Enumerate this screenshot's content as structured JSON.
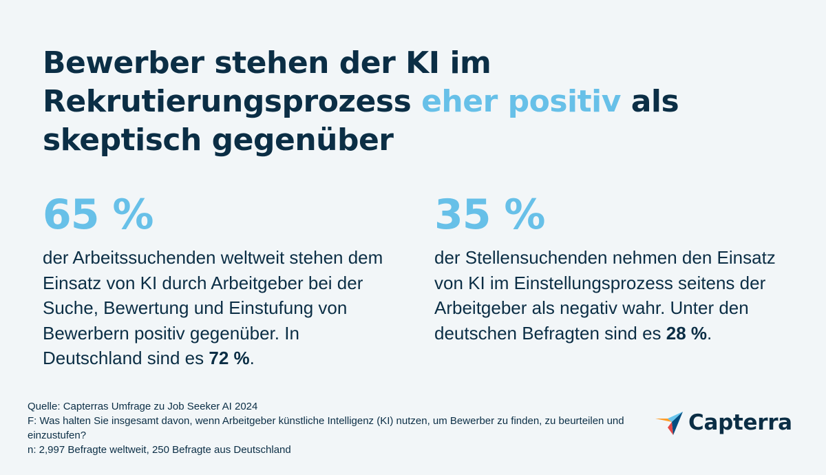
{
  "headline": {
    "part1": "Bewerber stehen der KI im Rekrutierungsprozess ",
    "accent": "eher positiv",
    "part2": " als skeptisch gegenüber"
  },
  "stats": [
    {
      "percent": "65 %",
      "text_before": "der Arbeitssuchenden weltweit stehen dem Einsatz von KI durch Arbeitgeber bei der Suche, Bewertung und Einstufung von Bewerbern positiv gegenüber. In Deutschland sind es ",
      "highlight": "72 %",
      "text_after": "."
    },
    {
      "percent": "35 %",
      "text_before": "der Stellensuchenden nehmen den Einsatz von KI im Einstellungsprozess seitens der Arbeitgeber als negativ wahr. Unter den deutschen Befragten sind es ",
      "highlight": "28 %",
      "text_after": "."
    }
  ],
  "footer": {
    "source": "Quelle: Capterras Umfrage zu Job Seeker AI 2024",
    "question": "F: Was halten Sie insgesamt davon, wenn Arbeitgeber künstliche Intelligenz (KI) nutzen, um Bewerber zu finden, zu beurteilen und einzustufen?",
    "sample": "n: 2,997 Befragte weltweit, 250 Befragte aus Deutschland"
  },
  "logo": {
    "name": "Capterra"
  },
  "colors": {
    "navy": "#0b2e45",
    "accent": "#67c0e8",
    "background": "#f2f6f8"
  }
}
